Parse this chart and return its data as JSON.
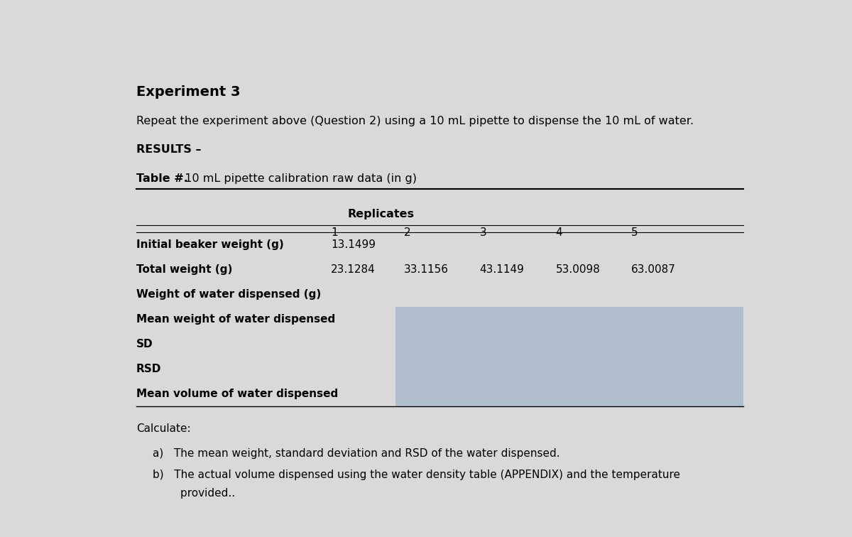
{
  "bg_color": "#d9d9d9",
  "title_experiment": "Experiment 3",
  "subtitle": "Repeat the experiment above (Question 2) using a 10 mL pipette to dispense the 10 mL of water.",
  "results_label": "RESULTS –",
  "table_title_bold": "Table #.",
  "table_title_normal": "  10 mL pipette calibration raw data (in g)",
  "replicates_header": "Replicates",
  "col_headers": [
    "1",
    "2",
    "3",
    "4",
    "5"
  ],
  "row_labels": [
    "Initial beaker weight (g)",
    "Total weight (g)",
    "Weight of water dispensed (g)",
    "Mean weight of water dispensed",
    "SD",
    "RSD",
    "Mean volume of water dispensed"
  ],
  "data_row0": [
    "13.1499",
    "",
    "",
    "",
    ""
  ],
  "data_row1": [
    "23.1284",
    "33.1156",
    "43.1149",
    "53.0098",
    "63.0087"
  ],
  "shade_color": "#b0bece",
  "calculate_label": "Calculate:",
  "calc_a": "a)   The mean weight, standard deviation and RSD of the water dispensed.",
  "calc_b": "b)   The actual volume dispensed using the water density table (APPENDIX) and the temperature",
  "calc_b2": "        provided..",
  "font_size_title": 14,
  "font_size_body": 11.5,
  "font_size_table": 11
}
